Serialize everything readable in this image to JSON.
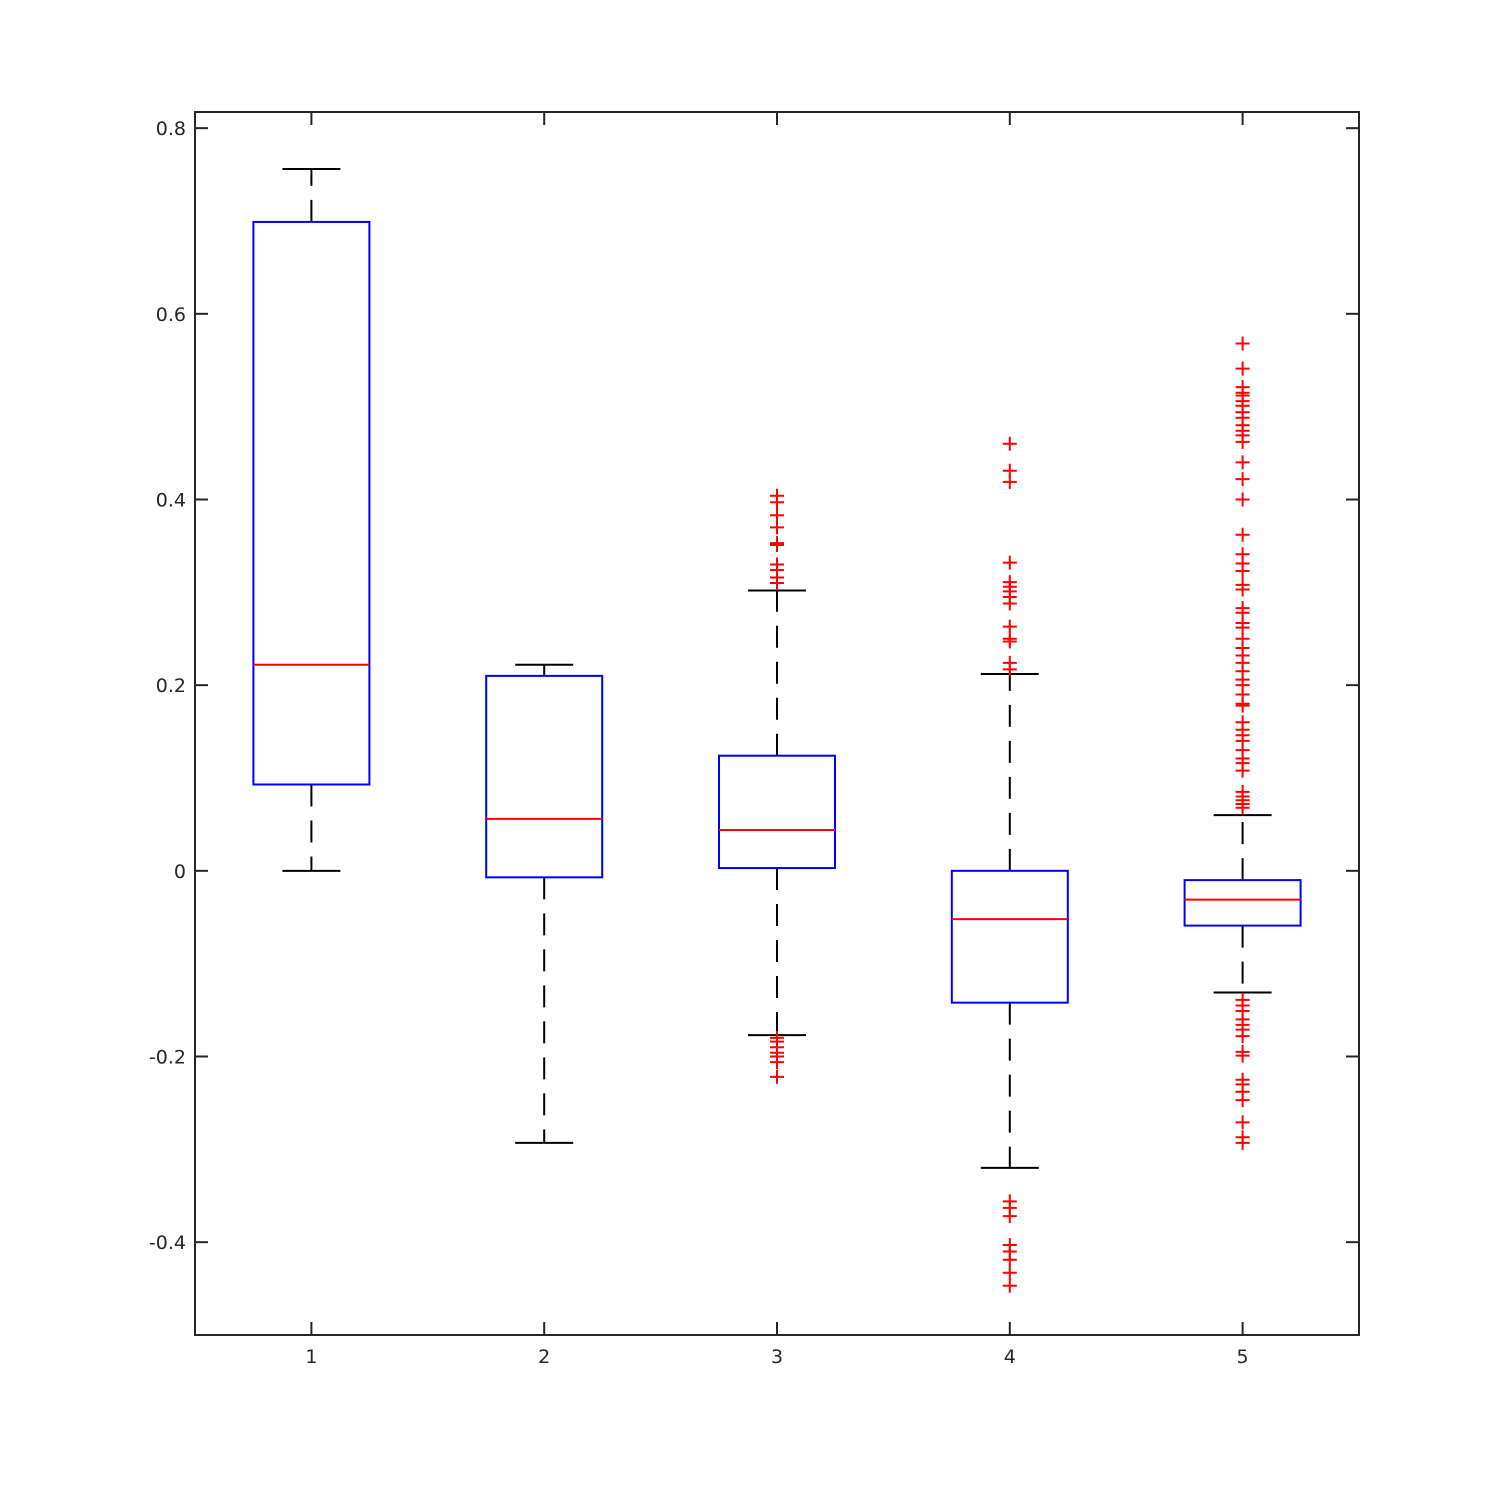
{
  "chart_data": {
    "type": "box",
    "title": "",
    "xlabel": "",
    "ylabel": "",
    "xlim": [
      0.5,
      5.5
    ],
    "ylim": [
      -0.5,
      0.8174
    ],
    "grid": false,
    "legend": "none",
    "x_ticks": [
      "1",
      "2",
      "3",
      "4",
      "5"
    ],
    "y_ticks": [
      {
        "value": -0.4,
        "label": "-0.4"
      },
      {
        "value": -0.2,
        "label": "-0.2"
      },
      {
        "value": 0,
        "label": "0"
      },
      {
        "value": 0.2,
        "label": "0.2"
      },
      {
        "value": 0.4,
        "label": "0.4"
      },
      {
        "value": 0.6,
        "label": "0.6"
      },
      {
        "value": 0.8,
        "label": "0.8"
      }
    ],
    "colors": {
      "axes": "#262626",
      "box": "#0000ff",
      "median": "#ff0000",
      "whisker": "#000000",
      "outlier": "#ff0000"
    },
    "boxes": [
      {
        "category": "1",
        "whisker_low": 0.0,
        "q1": 0.093,
        "median": 0.222,
        "q3": 0.699,
        "whisker_high": 0.756,
        "outliers": []
      },
      {
        "category": "2",
        "whisker_low": -0.293,
        "q1": -0.007,
        "median": 0.056,
        "q3": 0.21,
        "whisker_high": 0.222,
        "outliers": []
      },
      {
        "category": "3",
        "whisker_low": -0.177,
        "q1": 0.003,
        "median": 0.044,
        "q3": 0.124,
        "whisker_high": 0.302,
        "outliers": [
          0.404,
          0.397,
          0.383,
          0.37,
          0.353,
          0.351,
          0.33,
          0.324,
          0.316,
          0.31,
          -0.18,
          -0.184,
          -0.19,
          -0.196,
          -0.2,
          -0.206,
          -0.222
        ]
      },
      {
        "category": "4",
        "whisker_low": -0.32,
        "q1": -0.142,
        "median": -0.052,
        "q3": 0.0,
        "whisker_high": 0.212,
        "outliers": [
          0.46,
          0.431,
          0.419,
          0.332,
          0.311,
          0.306,
          0.301,
          0.295,
          0.288,
          0.263,
          0.25,
          0.247,
          0.224,
          0.217,
          -0.356,
          -0.363,
          -0.372,
          -0.403,
          -0.41,
          -0.419,
          -0.433,
          -0.447
        ]
      },
      {
        "category": "5",
        "whisker_low": -0.131,
        "q1": -0.059,
        "median": -0.031,
        "q3": -0.01,
        "whisker_high": 0.06,
        "outliers": [
          0.568,
          0.541,
          0.521,
          0.515,
          0.512,
          0.506,
          0.501,
          0.494,
          0.488,
          0.48,
          0.474,
          0.469,
          0.462,
          0.44,
          0.422,
          0.4,
          0.362,
          0.341,
          0.331,
          0.323,
          0.308,
          0.303,
          0.283,
          0.278,
          0.267,
          0.262,
          0.25,
          0.24,
          0.232,
          0.224,
          0.215,
          0.206,
          0.2,
          0.19,
          0.18,
          0.178,
          0.16,
          0.152,
          0.146,
          0.14,
          0.13,
          0.121,
          0.116,
          0.108,
          0.085,
          0.08,
          0.076,
          0.072,
          0.068,
          -0.139,
          -0.145,
          -0.151,
          -0.16,
          -0.166,
          -0.171,
          -0.178,
          -0.195,
          -0.199,
          -0.225,
          -0.23,
          -0.238,
          -0.247,
          -0.271,
          -0.287,
          -0.293
        ]
      }
    ]
  }
}
